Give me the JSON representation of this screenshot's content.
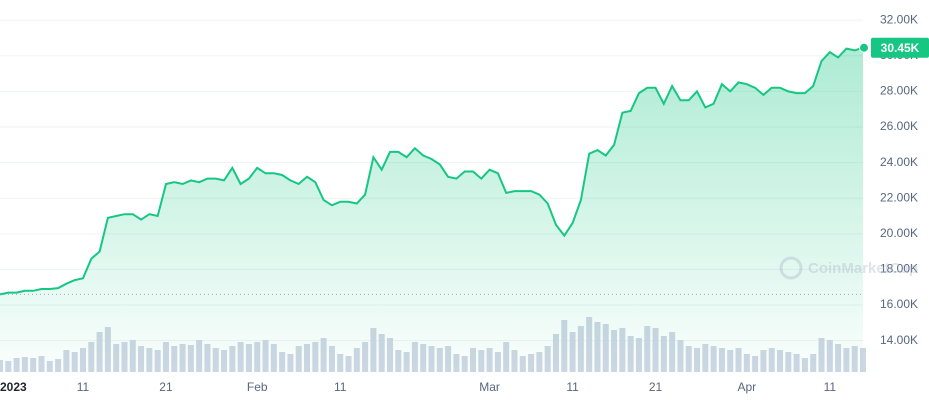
{
  "chart_data": {
    "type": "line",
    "x": [
      "2023-01-01",
      "2023-01-02",
      "2023-01-03",
      "2023-01-04",
      "2023-01-05",
      "2023-01-06",
      "2023-01-07",
      "2023-01-08",
      "2023-01-09",
      "2023-01-10",
      "2023-01-11",
      "2023-01-12",
      "2023-01-13",
      "2023-01-14",
      "2023-01-15",
      "2023-01-16",
      "2023-01-17",
      "2023-01-18",
      "2023-01-19",
      "2023-01-20",
      "2023-01-21",
      "2023-01-22",
      "2023-01-23",
      "2023-01-24",
      "2023-01-25",
      "2023-01-26",
      "2023-01-27",
      "2023-01-28",
      "2023-01-29",
      "2023-01-30",
      "2023-01-31",
      "2023-02-01",
      "2023-02-02",
      "2023-02-03",
      "2023-02-04",
      "2023-02-05",
      "2023-02-06",
      "2023-02-07",
      "2023-02-08",
      "2023-02-09",
      "2023-02-10",
      "2023-02-11",
      "2023-02-12",
      "2023-02-13",
      "2023-02-14",
      "2023-02-15",
      "2023-02-16",
      "2023-02-17",
      "2023-02-18",
      "2023-02-19",
      "2023-02-20",
      "2023-02-21",
      "2023-02-22",
      "2023-02-23",
      "2023-02-24",
      "2023-02-25",
      "2023-02-26",
      "2023-02-27",
      "2023-02-28",
      "2023-03-01",
      "2023-03-02",
      "2023-03-03",
      "2023-03-04",
      "2023-03-05",
      "2023-03-06",
      "2023-03-07",
      "2023-03-08",
      "2023-03-09",
      "2023-03-10",
      "2023-03-11",
      "2023-03-12",
      "2023-03-13",
      "2023-03-14",
      "2023-03-15",
      "2023-03-16",
      "2023-03-17",
      "2023-03-18",
      "2023-03-19",
      "2023-03-20",
      "2023-03-21",
      "2023-03-22",
      "2023-03-23",
      "2023-03-24",
      "2023-03-25",
      "2023-03-26",
      "2023-03-27",
      "2023-03-28",
      "2023-03-29",
      "2023-03-30",
      "2023-03-31",
      "2023-04-01",
      "2023-04-02",
      "2023-04-03",
      "2023-04-04",
      "2023-04-05",
      "2023-04-06",
      "2023-04-07",
      "2023-04-08",
      "2023-04-09",
      "2023-04-10",
      "2023-04-11",
      "2023-04-12",
      "2023-04-13",
      "2023-04-14",
      "2023-04-15"
    ],
    "series": [
      {
        "name": "Price",
        "color": "#16c784",
        "values": [
          16600,
          16700,
          16700,
          16800,
          16800,
          16900,
          16900,
          16950,
          17200,
          17400,
          17500,
          18600,
          19000,
          20900,
          21000,
          21100,
          21100,
          20800,
          21100,
          21000,
          22800,
          22900,
          22800,
          23000,
          22900,
          23100,
          23100,
          23000,
          23700,
          22800,
          23100,
          23700,
          23400,
          23400,
          23300,
          23000,
          22800,
          23200,
          22900,
          21900,
          21600,
          21800,
          21800,
          21700,
          22200,
          24300,
          23600,
          24600,
          24600,
          24300,
          24800,
          24400,
          24200,
          23900,
          23200,
          23100,
          23500,
          23500,
          23100,
          23600,
          23400,
          22300,
          22400,
          22400,
          22400,
          22200,
          21700,
          20500,
          19900,
          20600,
          21900,
          24500,
          24700,
          24400,
          25000,
          26800,
          26900,
          27900,
          28200,
          28200,
          27300,
          28300,
          27500,
          27500,
          28000,
          27100,
          27300,
          28400,
          28000,
          28500,
          28400,
          28200,
          27800,
          28200,
          28200,
          28000,
          27900,
          27900,
          28300,
          29700,
          30200,
          29900,
          30400,
          30300,
          30450
        ]
      },
      {
        "name": "Volume",
        "color": "#cfd6e4",
        "values": [
          12,
          11,
          14,
          15,
          14,
          16,
          11,
          13,
          22,
          20,
          24,
          30,
          40,
          45,
          28,
          30,
          32,
          26,
          24,
          22,
          30,
          26,
          28,
          27,
          32,
          28,
          24,
          22,
          26,
          30,
          28,
          30,
          32,
          28,
          20,
          18,
          26,
          28,
          30,
          34,
          26,
          18,
          16,
          24,
          30,
          44,
          38,
          34,
          22,
          20,
          30,
          28,
          26,
          24,
          26,
          18,
          16,
          24,
          22,
          24,
          20,
          30,
          22,
          16,
          18,
          20,
          26,
          38,
          52,
          40,
          46,
          55,
          50,
          48,
          42,
          44,
          36,
          34,
          46,
          44,
          36,
          40,
          32,
          26,
          24,
          28,
          26,
          24,
          22,
          24,
          18,
          16,
          22,
          24,
          22,
          20,
          18,
          14,
          18,
          34,
          32,
          28,
          24,
          26,
          24
        ]
      }
    ],
    "xlim": [
      "2023-01-01",
      "2023-04-15"
    ],
    "xticks": [
      {
        "value": "2023-01-01",
        "label": "2023"
      },
      {
        "value": "2023-01-11",
        "label": "11"
      },
      {
        "value": "2023-01-21",
        "label": "21"
      },
      {
        "value": "2023-02-01",
        "label": "Feb"
      },
      {
        "value": "2023-02-11",
        "label": "11"
      },
      {
        "value": "2023-03-01",
        "label": "Mar"
      },
      {
        "value": "2023-03-11",
        "label": "11"
      },
      {
        "value": "2023-03-21",
        "label": "21"
      },
      {
        "value": "2023-04-01",
        "label": "Apr"
      },
      {
        "value": "2023-04-11",
        "label": "11"
      }
    ],
    "ylim": [
      12240,
      33130
    ],
    "yticks": [
      {
        "value": 14000,
        "label": "14.00K"
      },
      {
        "value": 16000,
        "label": "16.00K"
      },
      {
        "value": 18000,
        "label": "18.00K"
      },
      {
        "value": 20000,
        "label": "20.00K"
      },
      {
        "value": 22000,
        "label": "22.00K"
      },
      {
        "value": 24000,
        "label": "24.00K"
      },
      {
        "value": 26000,
        "label": "26.00K"
      },
      {
        "value": 28000,
        "label": "28.00K"
      },
      {
        "value": 30000,
        "label": "30.00K"
      },
      {
        "value": 32000,
        "label": "32.00K"
      }
    ],
    "volume_lim": [
      0,
      60
    ],
    "current_price": {
      "value": 30450,
      "label": "30.45K"
    },
    "watermark": "CoinMarketCap",
    "grid": true
  }
}
